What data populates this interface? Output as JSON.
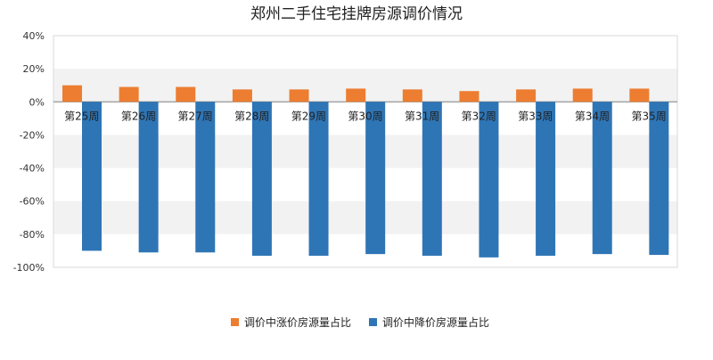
{
  "chart_data": {
    "type": "bar",
    "title": "郑州二手住宅挂牌房源调价情况",
    "categories": [
      "第25周",
      "第26周",
      "第27周",
      "第28周",
      "第29周",
      "第30周",
      "第31周",
      "第32周",
      "第33周",
      "第34周",
      "第35周"
    ],
    "series": [
      {
        "name": "调价中涨价房源量占比",
        "color": "#ED7D31",
        "values": [
          10,
          9,
          9,
          7.5,
          7.5,
          8,
          7.5,
          6.5,
          7.5,
          8,
          8
        ]
      },
      {
        "name": "调价中降价房源量占比",
        "color": "#2E75B6",
        "values": [
          -90,
          -91,
          -91,
          -93,
          -93,
          -92,
          -93,
          -94,
          -93,
          -92,
          -92.5
        ]
      }
    ],
    "ylim": [
      -100,
      40
    ],
    "yticks": [
      "40%",
      "20%",
      "0%",
      "-20%",
      "-40%",
      "-60%",
      "-80%",
      "-100%"
    ],
    "ytick_values": [
      40,
      20,
      0,
      -20,
      -40,
      -60,
      -80,
      -100
    ],
    "band_colors": [
      "#ffffff",
      "#f2f2f2"
    ],
    "legend_position": "bottom",
    "xlabel": "",
    "ylabel": ""
  }
}
